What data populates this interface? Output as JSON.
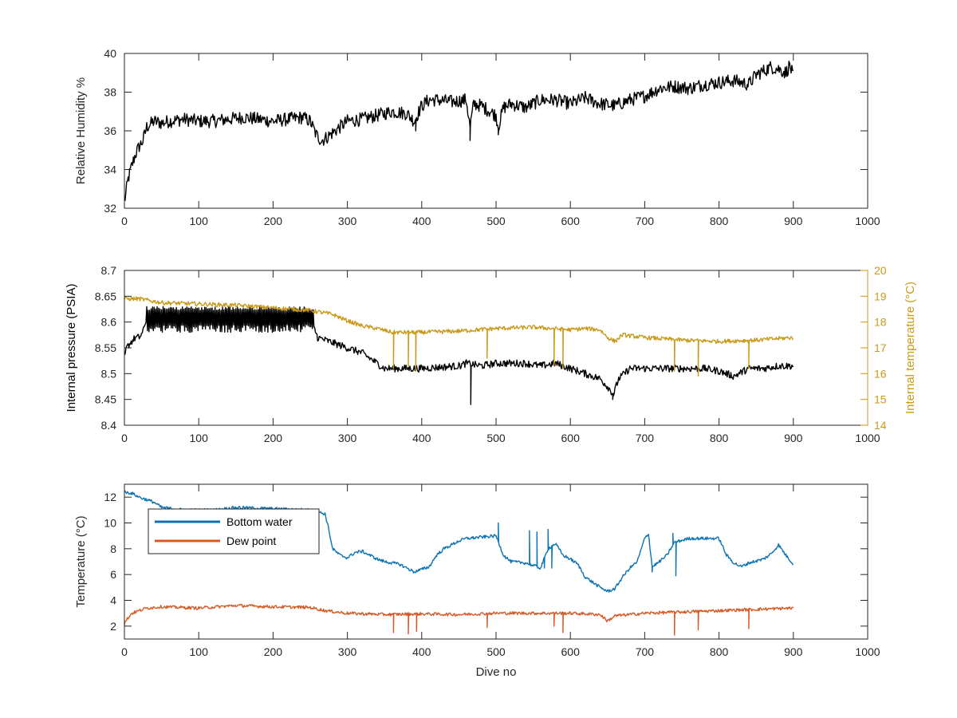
{
  "chart_data": [
    {
      "type": "line",
      "title": "",
      "xlabel": "",
      "ylabel": "Relative Humidity %",
      "xlim": [
        0,
        1000
      ],
      "ylim": [
        32,
        40
      ],
      "xticks": [
        0,
        100,
        200,
        300,
        400,
        500,
        600,
        700,
        800,
        900,
        1000
      ],
      "yticks": [
        32,
        34,
        36,
        38,
        40
      ],
      "grid": false,
      "series": [
        {
          "color": "#000000",
          "x": [
            0,
            5,
            10,
            15,
            20,
            25,
            30,
            40,
            50,
            60,
            80,
            100,
            120,
            140,
            160,
            180,
            200,
            220,
            240,
            250,
            258,
            265,
            270,
            280,
            290,
            300,
            320,
            340,
            360,
            380,
            390,
            400,
            410,
            420,
            440,
            460,
            465,
            470,
            480,
            500,
            503,
            510,
            520,
            540,
            560,
            580,
            600,
            620,
            640,
            660,
            680,
            700,
            720,
            740,
            760,
            780,
            800,
            820,
            840,
            850,
            860,
            870,
            880,
            890,
            895,
            900
          ],
          "y": [
            32.3,
            33.5,
            34.2,
            34.8,
            35.2,
            35.5,
            36.2,
            36.5,
            36.4,
            36.5,
            36.6,
            36.5,
            36.5,
            36.6,
            36.7,
            36.6,
            36.5,
            36.6,
            36.7,
            36.5,
            35.8,
            35.5,
            35.6,
            35.9,
            36.2,
            36.5,
            36.6,
            36.8,
            37.0,
            36.9,
            36.5,
            37.3,
            37.6,
            37.6,
            37.5,
            37.6,
            36.2,
            37.4,
            37.3,
            36.8,
            36.2,
            37.2,
            37.4,
            37.2,
            37.6,
            37.6,
            37.4,
            37.7,
            37.4,
            37.3,
            37.6,
            37.8,
            38.2,
            38.3,
            38.2,
            38.4,
            38.5,
            38.6,
            38.4,
            38.9,
            39.1,
            39.3,
            39.2,
            39.0,
            39.4,
            38.8
          ],
          "noise": 0.35,
          "spikes": [
            [
              465,
              35.5
            ],
            [
              503,
              35.8
            ],
            [
              392,
              36.0
            ]
          ]
        }
      ]
    },
    {
      "type": "line",
      "title": "",
      "xlabel": "",
      "ylabel": "Internal pressure (PSIA)",
      "y2label": "Internal temperature (°C)",
      "xlim": [
        0,
        1000
      ],
      "ylim": [
        8.4,
        8.7
      ],
      "y2lim": [
        14,
        20
      ],
      "xticks": [
        0,
        100,
        200,
        300,
        400,
        500,
        600,
        700,
        800,
        900,
        1000
      ],
      "yticks": [
        8.4,
        8.45,
        8.5,
        8.55,
        8.6,
        8.65,
        8.7
      ],
      "y2ticks": [
        14,
        15,
        16,
        17,
        18,
        19,
        20
      ],
      "grid": false,
      "series": [
        {
          "axis": "left",
          "color": "#000000",
          "x": [
            0,
            3,
            8,
            15,
            20,
            25,
            28,
            30,
            50,
            100,
            150,
            200,
            250,
            255,
            260,
            280,
            300,
            320,
            340,
            350,
            380,
            400,
            450,
            460,
            480,
            500,
            520,
            540,
            560,
            580,
            600,
            620,
            640,
            650,
            658,
            665,
            680,
            700,
            720,
            740,
            760,
            780,
            800,
            820,
            840,
            860,
            880,
            900
          ],
          "y": [
            8.53,
            8.55,
            8.56,
            8.57,
            8.57,
            8.58,
            8.6,
            8.6,
            8.6,
            8.6,
            8.6,
            8.6,
            8.6,
            8.59,
            8.57,
            8.56,
            8.55,
            8.54,
            8.52,
            8.51,
            8.51,
            8.51,
            8.515,
            8.52,
            8.515,
            8.52,
            8.52,
            8.52,
            8.515,
            8.52,
            8.51,
            8.5,
            8.49,
            8.475,
            8.46,
            8.49,
            8.51,
            8.51,
            8.51,
            8.51,
            8.51,
            8.51,
            8.505,
            8.495,
            8.51,
            8.51,
            8.515,
            8.515
          ],
          "noise": 0.007,
          "band": [
            30,
            255,
            8.58,
            8.63
          ],
          "spikes": [
            [
              466,
              8.44
            ],
            [
              657,
              8.45
            ]
          ]
        },
        {
          "axis": "right",
          "color": "#c99a1a",
          "x": [
            0,
            20,
            50,
            100,
            150,
            200,
            250,
            280,
            300,
            320,
            340,
            360,
            400,
            450,
            500,
            550,
            600,
            620,
            640,
            650,
            660,
            670,
            700,
            750,
            800,
            850,
            900
          ],
          "y": [
            18.9,
            18.9,
            18.75,
            18.7,
            18.65,
            18.55,
            18.45,
            18.3,
            18.05,
            17.85,
            17.75,
            17.6,
            17.6,
            17.65,
            17.75,
            17.8,
            17.7,
            17.75,
            17.7,
            17.4,
            17.25,
            17.5,
            17.4,
            17.3,
            17.25,
            17.3,
            17.4
          ],
          "noise": 0.08,
          "spikes": [
            [
              362,
              16.2
            ],
            [
              382,
              16.3
            ],
            [
              392,
              16.1
            ],
            [
              488,
              16.6
            ],
            [
              578,
              16.3
            ],
            [
              590,
              16.2
            ],
            [
              740,
              16.1
            ],
            [
              772,
              15.9
            ],
            [
              840,
              16.2
            ]
          ]
        }
      ]
    },
    {
      "type": "line",
      "title": "",
      "xlabel": "Dive no",
      "ylabel": "Temperature (°C)",
      "xlim": [
        0,
        1000
      ],
      "ylim": [
        1,
        13
      ],
      "xticks": [
        0,
        100,
        200,
        300,
        400,
        500,
        600,
        700,
        800,
        900,
        1000
      ],
      "yticks": [
        2,
        4,
        6,
        8,
        10,
        12
      ],
      "grid": false,
      "legend": "top-left",
      "series": [
        {
          "name": "Bottom water",
          "color": "#0b72b4",
          "x": [
            0,
            10,
            20,
            30,
            40,
            50,
            80,
            120,
            150,
            200,
            250,
            270,
            275,
            280,
            290,
            300,
            310,
            320,
            330,
            340,
            350,
            360,
            370,
            380,
            390,
            400,
            410,
            420,
            430,
            440,
            450,
            460,
            480,
            500,
            510,
            520,
            540,
            560,
            570,
            580,
            590,
            600,
            610,
            620,
            640,
            650,
            660,
            670,
            680,
            690,
            700,
            705,
            710,
            720,
            730,
            740,
            760,
            780,
            800,
            810,
            820,
            830,
            840,
            860,
            870,
            880,
            890,
            900
          ],
          "y": [
            12.4,
            12.3,
            12.0,
            11.8,
            11.6,
            11.2,
            11.0,
            11.0,
            11.2,
            11.1,
            11.0,
            10.7,
            9.5,
            8.0,
            7.5,
            7.3,
            7.7,
            7.8,
            7.5,
            7.2,
            7.0,
            6.9,
            6.8,
            6.5,
            6.2,
            6.4,
            6.6,
            7.5,
            8.0,
            8.3,
            8.6,
            8.8,
            8.9,
            9.0,
            7.5,
            7.0,
            6.9,
            6.5,
            8.0,
            8.4,
            7.5,
            7.2,
            6.8,
            5.8,
            5.0,
            4.7,
            4.9,
            5.8,
            6.5,
            7.0,
            8.8,
            9.2,
            6.6,
            7.0,
            7.5,
            8.5,
            8.8,
            8.8,
            8.8,
            7.5,
            6.9,
            6.6,
            6.9,
            7.2,
            7.6,
            8.3,
            7.5,
            6.8
          ],
          "noise": 0.12,
          "spikes": [
            [
              503,
              10.0
            ],
            [
              545,
              9.4
            ],
            [
              555,
              9.3
            ],
            [
              565,
              6.5
            ],
            [
              570,
              9.5
            ],
            [
              575,
              6.5
            ],
            [
              710,
              6.2
            ],
            [
              738,
              9.2
            ],
            [
              742,
              5.9
            ]
          ]
        },
        {
          "name": "Dew point",
          "color": "#d65a23",
          "x": [
            0,
            3,
            10,
            20,
            30,
            50,
            100,
            150,
            200,
            250,
            270,
            300,
            350,
            400,
            450,
            500,
            550,
            600,
            640,
            650,
            660,
            700,
            750,
            800,
            850,
            900
          ],
          "y": [
            2.2,
            2.5,
            3.0,
            3.2,
            3.4,
            3.5,
            3.4,
            3.6,
            3.5,
            3.45,
            3.2,
            3.0,
            2.9,
            2.95,
            2.9,
            3.0,
            3.0,
            3.0,
            2.9,
            2.4,
            2.8,
            3.0,
            3.1,
            3.2,
            3.3,
            3.4
          ],
          "noise": 0.12,
          "spikes": [
            [
              362,
              1.5
            ],
            [
              382,
              1.4
            ],
            [
              393,
              1.6
            ],
            [
              488,
              1.9
            ],
            [
              578,
              2.0
            ],
            [
              590,
              1.5
            ],
            [
              740,
              1.3
            ],
            [
              772,
              1.7
            ],
            [
              840,
              1.8
            ]
          ]
        }
      ]
    }
  ]
}
